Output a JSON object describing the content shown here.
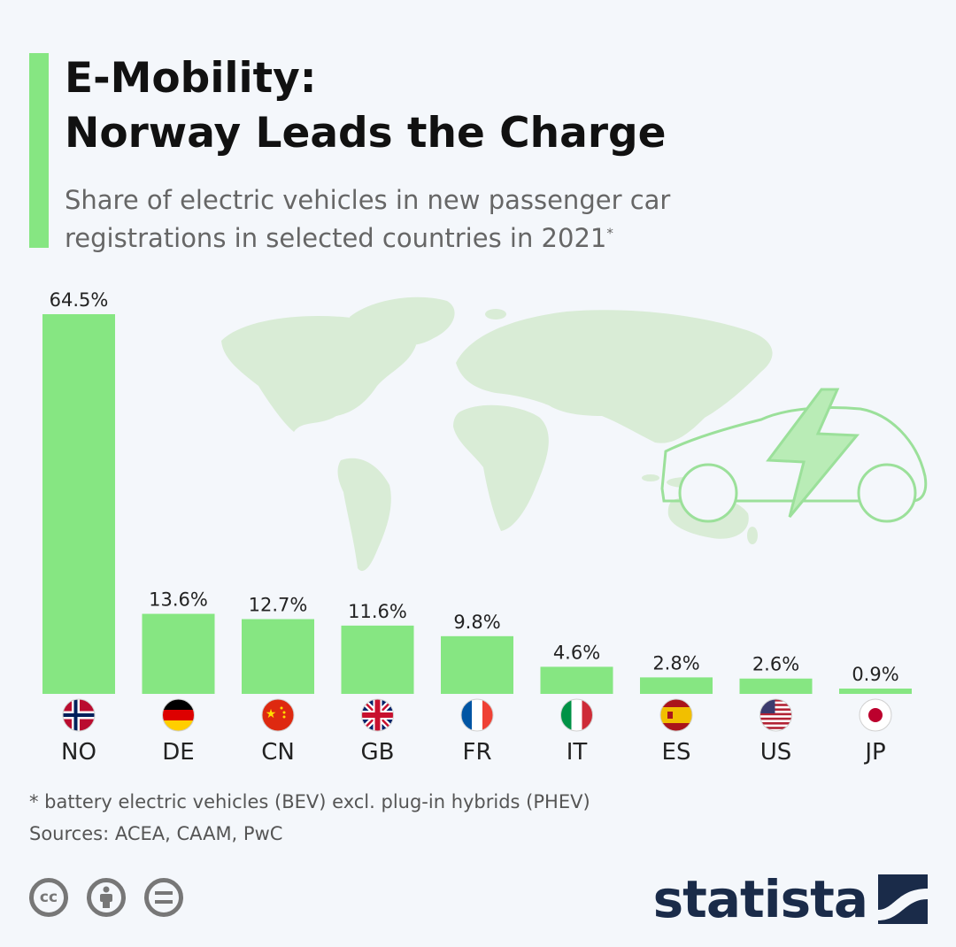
{
  "header": {
    "title_line1": "E-Mobility:",
    "title_line2": "Norway Leads the Charge",
    "subtitle_line1": "Share of electric vehicles in new passenger car",
    "subtitle_line2": "registrations in selected countries in 2021",
    "subtitle_marker": "*"
  },
  "colors": {
    "accent": "#86e682",
    "bar": "#86e682",
    "map": "#d9ecd6",
    "brand": "#1a2b49"
  },
  "chart_data": {
    "type": "bar",
    "title": "E-Mobility: Norway Leads the Charge",
    "subtitle": "Share of electric vehicles in new passenger car registrations in selected countries in 2021*",
    "categories": [
      "NO",
      "DE",
      "CN",
      "GB",
      "FR",
      "IT",
      "ES",
      "US",
      "JP"
    ],
    "values": [
      64.5,
      13.6,
      12.7,
      11.6,
      9.8,
      4.6,
      2.8,
      2.6,
      0.9
    ],
    "value_labels": [
      "64.5%",
      "13.6%",
      "12.7%",
      "11.6%",
      "9.8%",
      "4.6%",
      "2.8%",
      "2.6%",
      "0.9%"
    ],
    "flags": [
      "norway-flag",
      "germany-flag",
      "china-flag",
      "uk-flag",
      "france-flag",
      "italy-flag",
      "spain-flag",
      "usa-flag",
      "japan-flag"
    ],
    "ylim": [
      0,
      64.5
    ],
    "grid": false,
    "legend": "none"
  },
  "footer": {
    "note": "* battery electric vehicles (BEV) excl. plug-in hybrids (PHEV)",
    "sources": "Sources: ACEA, CAAM, PwC",
    "license_icons": [
      "cc-icon",
      "attribution-icon",
      "no-derivatives-icon"
    ],
    "brand": "statista"
  }
}
